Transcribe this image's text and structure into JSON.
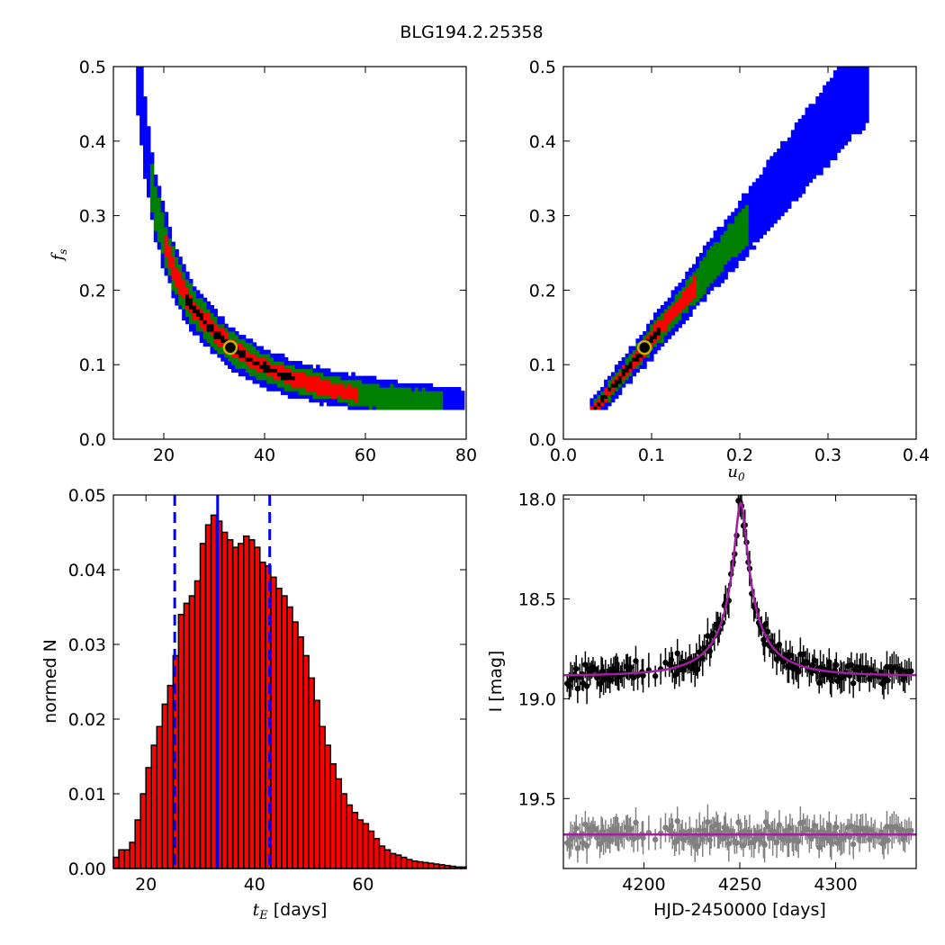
{
  "figure": {
    "title": "BLG194.2.25358",
    "colors": {
      "blue": "#0000ff",
      "green": "#008000",
      "red": "#ff0000",
      "black": "#000000",
      "model": "#a020a0",
      "residual": "#808080",
      "marker_ring": "#c8b400"
    }
  },
  "chart_data": [
    {
      "id": "fs-vs-tE",
      "type": "heatmap",
      "xlabel": "",
      "ylabel": "f_s",
      "xlim": [
        10,
        80
      ],
      "ylim": [
        0.0,
        0.5
      ],
      "xticks": [
        "20",
        "40",
        "60",
        "80"
      ],
      "yticks": [
        "0.0",
        "0.1",
        "0.2",
        "0.3",
        "0.4",
        "0.5"
      ],
      "levels": [
        "black",
        "red",
        "green",
        "blue"
      ],
      "ridge": {
        "x": [
          15,
          16,
          18,
          20,
          22,
          25,
          28,
          30,
          33,
          36,
          40,
          45,
          50,
          55,
          60,
          65,
          70,
          75,
          79
        ],
        "y": [
          0.5,
          0.42,
          0.32,
          0.27,
          0.225,
          0.185,
          0.16,
          0.145,
          0.125,
          0.112,
          0.097,
          0.083,
          0.073,
          0.066,
          0.06,
          0.056,
          0.052,
          0.049,
          0.046
        ]
      },
      "best_fit": {
        "x": 33.2,
        "y": 0.123
      }
    },
    {
      "id": "fs-vs-u0",
      "type": "heatmap",
      "xlabel": "u_0",
      "ylabel": "",
      "xlim": [
        0.0,
        0.4
      ],
      "ylim": [
        0.0,
        0.5
      ],
      "xticks": [
        "0.0",
        "0.1",
        "0.2",
        "0.3",
        "0.4"
      ],
      "yticks": [
        "0.0",
        "0.1",
        "0.2",
        "0.3",
        "0.4",
        "0.5"
      ],
      "levels": [
        "black",
        "red",
        "green",
        "blue"
      ],
      "best_fit": {
        "x": 0.092,
        "y": 0.123
      }
    },
    {
      "id": "tE-histogram",
      "type": "bar",
      "xlabel_math": "t_E",
      "xlabel": "[days]",
      "ylabel": "normed N",
      "xlim": [
        14,
        79
      ],
      "ylim": [
        0.0,
        0.05
      ],
      "xticks": [
        "20",
        "40",
        "60"
      ],
      "yticks": [
        "0.00",
        "0.01",
        "0.02",
        "0.03",
        "0.04",
        "0.05"
      ],
      "bin_start": 14,
      "bin_width": 1,
      "values": [
        0.0015,
        0.0025,
        0.0025,
        0.0035,
        0.0065,
        0.01,
        0.0135,
        0.0165,
        0.019,
        0.022,
        0.0245,
        0.0285,
        0.034,
        0.0355,
        0.0365,
        0.0385,
        0.0435,
        0.046,
        0.0473,
        0.0465,
        0.045,
        0.044,
        0.043,
        0.0435,
        0.0445,
        0.044,
        0.043,
        0.041,
        0.0405,
        0.039,
        0.0375,
        0.0365,
        0.035,
        0.033,
        0.031,
        0.0285,
        0.0255,
        0.0225,
        0.019,
        0.0165,
        0.014,
        0.012,
        0.01,
        0.0085,
        0.0075,
        0.0065,
        0.006,
        0.005,
        0.004,
        0.003,
        0.0025,
        0.002,
        0.0018,
        0.0015,
        0.0012,
        0.001,
        0.0009,
        0.0008,
        0.0007,
        0.0006,
        0.0005,
        0.0004,
        0.0003,
        0.0002,
        0.0002
      ],
      "median": 33.2,
      "interval": [
        25.3,
        42.8
      ]
    },
    {
      "id": "light-curve",
      "type": "scatter",
      "xlabel": "HJD-2450000 [days]",
      "ylabel": "I [mag]",
      "xlim": [
        4158,
        4342
      ],
      "ylim": [
        19.85,
        17.98
      ],
      "xticks": [
        "4200",
        "4250",
        "4300"
      ],
      "yticks": [
        "18.0",
        "18.5",
        "19.0",
        "19.5"
      ],
      "model": {
        "t0": 4250.5,
        "tE": 33.2,
        "u0": 0.092,
        "fs": 0.123,
        "base_mag": 18.885
      },
      "residual_level": 19.68,
      "data_start": 4160,
      "data_end": 4340
    }
  ]
}
